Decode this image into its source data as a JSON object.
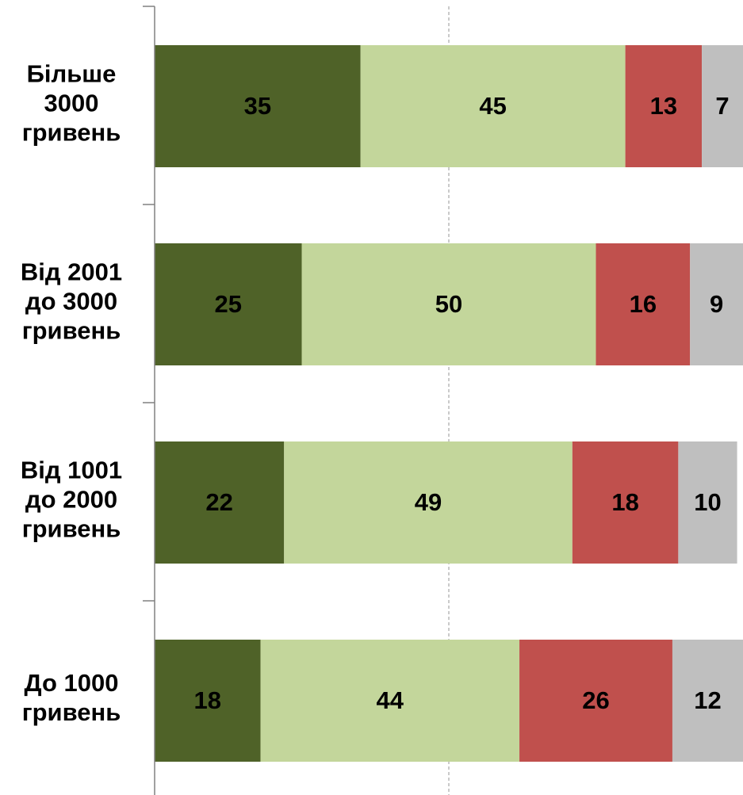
{
  "chart_data": {
    "type": "stacked-bar-horizontal",
    "categories": [
      "Більше 3000 гривень",
      "Від 2001 до 3000 гривень",
      "Від 1001 до 2000 гривень",
      "До 1000 гривень"
    ],
    "series": [
      {
        "color": "#4f6228",
        "values": [
          35,
          25,
          22,
          18
        ]
      },
      {
        "color": "#c3d69b",
        "values": [
          45,
          50,
          49,
          44
        ]
      },
      {
        "color": "#c0504d",
        "values": [
          13,
          16,
          18,
          26
        ]
      },
      {
        "color": "#bfbfbf",
        "values": [
          7,
          9,
          10,
          12
        ]
      }
    ],
    "xlim": [
      0,
      100
    ],
    "xgrid": [
      50
    ]
  }
}
